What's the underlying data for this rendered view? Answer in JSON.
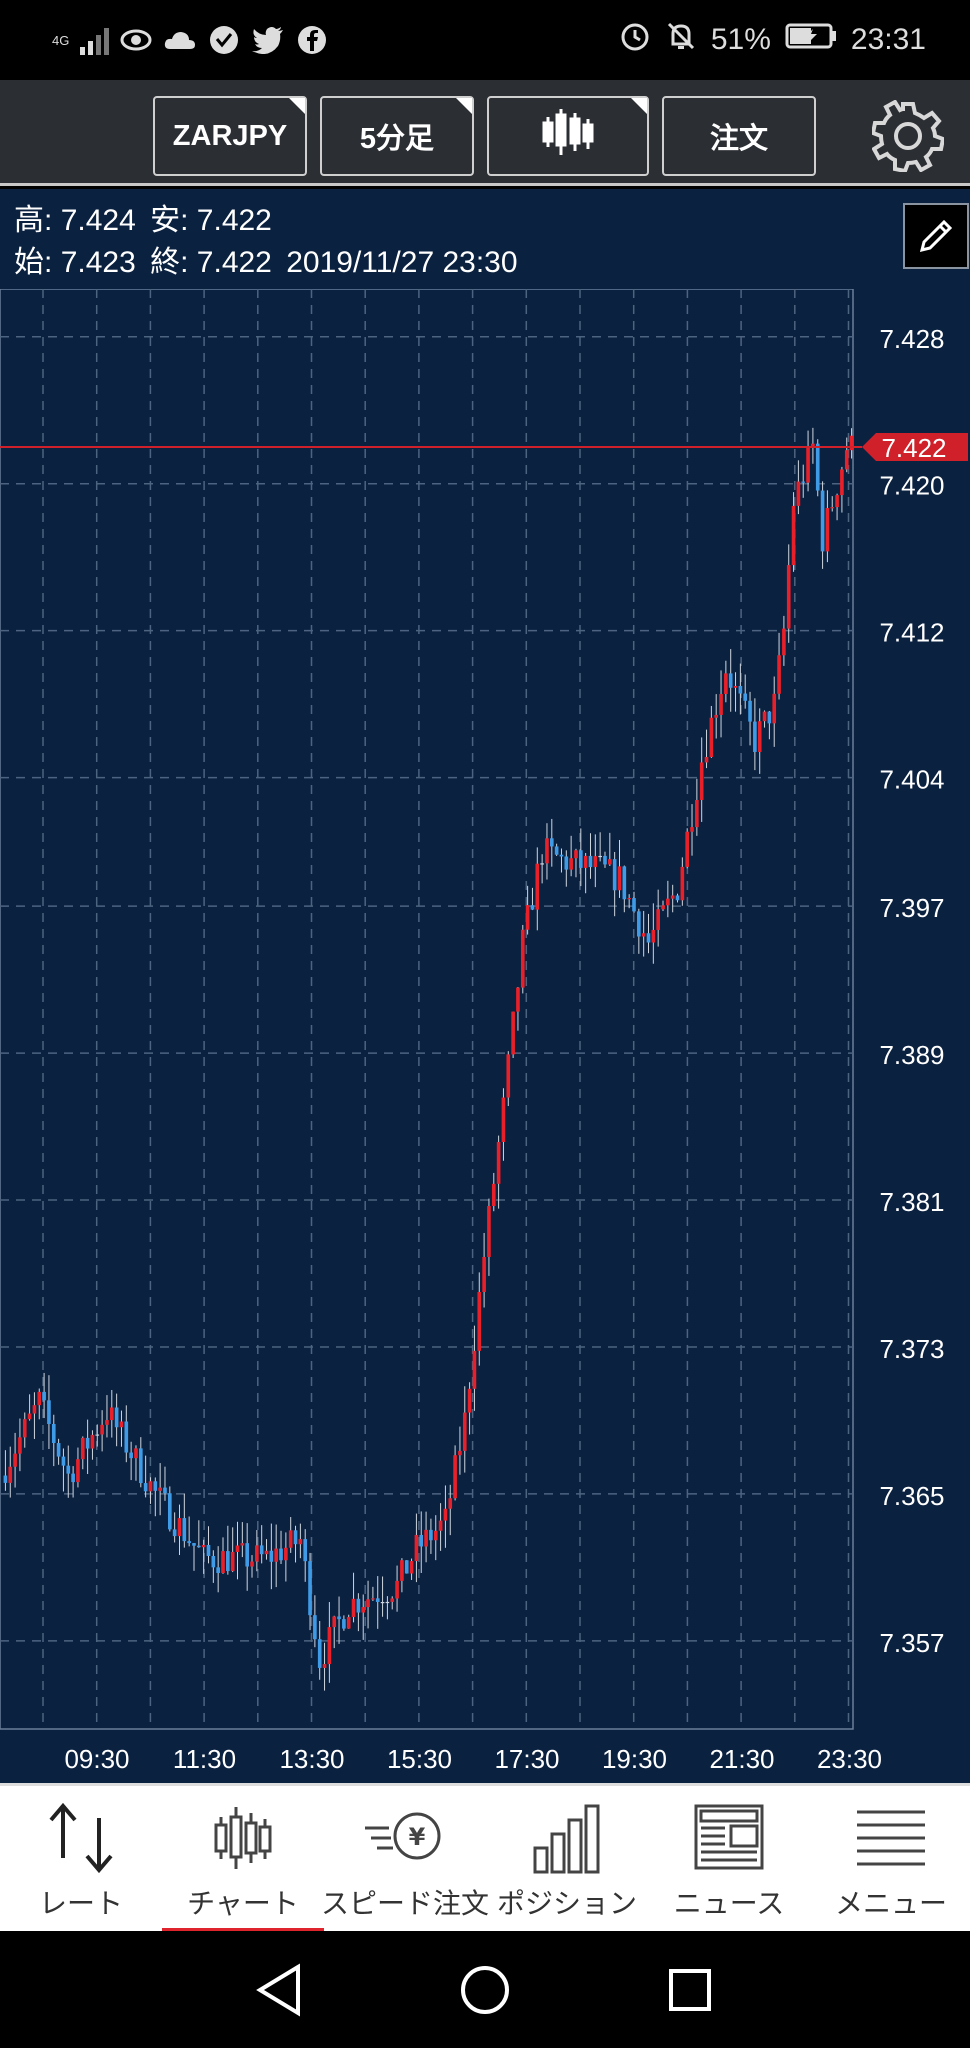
{
  "status_bar": {
    "network": "4G",
    "battery": "51%",
    "time": "23:31",
    "icons": [
      "eye-icon",
      "cloud-icon",
      "vpn-shield-icon",
      "twitter-icon",
      "facebook-icon",
      "alarm-icon",
      "bell-off-icon",
      "battery-charging-icon"
    ]
  },
  "toolbar": {
    "symbol": "ZARJPY",
    "timeframe": "5分足",
    "chart_type_icon": "candlestick-icon",
    "order": "注文",
    "settings_icon": "gear-icon"
  },
  "ohlc": {
    "high_label": "高:",
    "high": "7.424",
    "low_label": "安:",
    "low": "7.422",
    "open_label": "始:",
    "open": "7.423",
    "close_label": "終:",
    "close": "7.422",
    "datetime": "2019/11/27 23:30"
  },
  "chart_data": {
    "type": "candlestick",
    "symbol": "ZARJPY",
    "interval": "5分足",
    "title": "",
    "xlabel": "",
    "ylabel": "",
    "ylim": [
      7.3522,
      7.4306
    ],
    "yticks": [
      7.428,
      7.42,
      7.412,
      7.404,
      7.397,
      7.389,
      7.381,
      7.373,
      7.365,
      7.357
    ],
    "ytick_labels": [
      "7.428",
      "7.420",
      "7.412",
      "7.404",
      "7.397",
      "7.389",
      "7.381",
      "7.373",
      "7.365",
      "7.357"
    ],
    "xticks": [
      "09:30",
      "11:30",
      "13:30",
      "15:30",
      "17:30",
      "19:30",
      "21:30",
      "23:30"
    ],
    "grid": true,
    "current_price": 7.422,
    "current_price_label": "7.422",
    "colors": {
      "up": "#e8202a",
      "down": "#3f9be6",
      "doji": "#cfd6df",
      "price_line": "#d0202a",
      "grid": "#4d6480",
      "background": "#0b2140"
    },
    "trend_points": [
      [
        0,
        7.366
      ],
      [
        8,
        7.37
      ],
      [
        14,
        7.366
      ],
      [
        22,
        7.3695
      ],
      [
        32,
        7.365
      ],
      [
        42,
        7.3615
      ],
      [
        55,
        7.3615
      ],
      [
        62,
        7.3625
      ],
      [
        66,
        7.356
      ],
      [
        72,
        7.359
      ],
      [
        82,
        7.36
      ],
      [
        86,
        7.362
      ],
      [
        92,
        7.3635
      ],
      [
        96,
        7.369
      ],
      [
        100,
        7.378
      ],
      [
        104,
        7.386
      ],
      [
        108,
        7.395
      ],
      [
        112,
        7.4
      ],
      [
        116,
        7.3995
      ],
      [
        124,
        7.399
      ],
      [
        128,
        7.3985
      ],
      [
        134,
        7.395
      ],
      [
        140,
        7.398
      ],
      [
        145,
        7.405
      ],
      [
        150,
        7.41
      ],
      [
        156,
        7.406
      ],
      [
        160,
        7.408
      ],
      [
        162,
        7.412
      ],
      [
        164,
        7.419
      ],
      [
        168,
        7.422
      ],
      [
        170,
        7.417
      ],
      [
        172,
        7.419
      ],
      [
        175,
        7.422
      ]
    ]
  },
  "bottom_nav": [
    {
      "label": "レート",
      "icon": "rate-arrows-icon",
      "active": false
    },
    {
      "label": "チャート",
      "icon": "candlestick-chart-icon",
      "active": true
    },
    {
      "label": "スピード注文",
      "icon": "speed-order-yen-icon",
      "active": false
    },
    {
      "label": "ポジション",
      "icon": "bar-chart-icon",
      "active": false
    },
    {
      "label": "ニュース",
      "icon": "newspaper-icon",
      "active": false
    },
    {
      "label": "メニュー",
      "icon": "menu-lines-icon",
      "active": false
    }
  ],
  "system_nav": {
    "icons": [
      "back-icon",
      "home-icon",
      "recents-icon"
    ]
  }
}
